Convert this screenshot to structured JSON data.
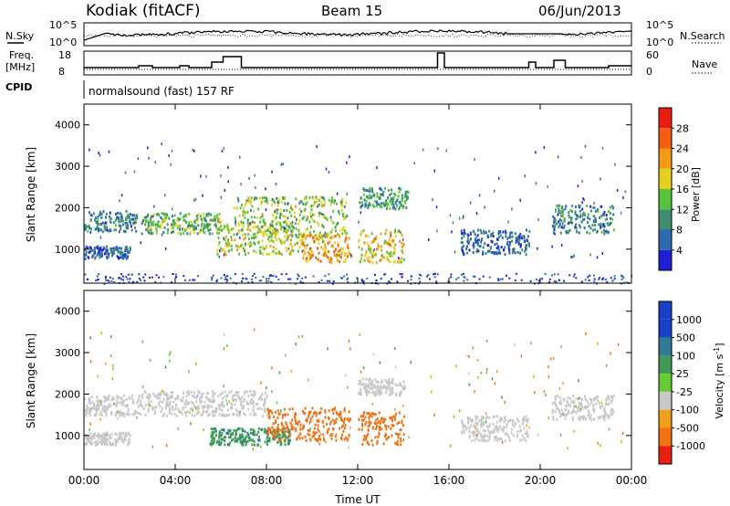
{
  "header": {
    "station": "Kodiak (fitACF)",
    "beam": "Beam 15",
    "date": "06/Jun/2013"
  },
  "top_panels": {
    "nsky_label": "N.Sky",
    "nsky_ticks": [
      "10^5",
      "10^0"
    ],
    "nsearch_label": "N.Search",
    "nsearch_ticks": [
      "10^5",
      "10^0"
    ],
    "freq_label_1": "Freq.",
    "freq_label_2": "[MHz]",
    "freq_ticks": [
      "18",
      "8"
    ],
    "nave_label": "Nave",
    "nave_ticks": [
      "60",
      "0"
    ],
    "cpid_label": "CPID",
    "cpid_text": "normalsound (fast) 157 RF"
  },
  "power_panel": {
    "ylabel": "Slant Range [km]",
    "yticks": [
      "1000",
      "2000",
      "3000",
      "4000"
    ],
    "colorbar_label": "Power [dB]",
    "colorbar_ticks": [
      "4",
      "8",
      "12",
      "16",
      "20",
      "24",
      "28"
    ],
    "colors": [
      "#1f1fd6",
      "#2d68b4",
      "#3d8c6e",
      "#55c43c",
      "#e6d01e",
      "#f29a16",
      "#f06010",
      "#e81e12"
    ]
  },
  "velocity_panel": {
    "ylabel": "Slant Range [km]",
    "yticks": [
      "1000",
      "2000",
      "3000",
      "4000"
    ],
    "colorbar_label": "Velocity [m s",
    "colorbar_label_sup": "-1",
    "colorbar_label_end": "]",
    "colorbar_ticks": [
      "1000",
      "500",
      "100",
      "25",
      "-25",
      "-100",
      "-500",
      "-1000"
    ],
    "colors": [
      "#1a40c8",
      "#2f7a96",
      "#3f9a55",
      "#66cc33",
      "#c8c8c8",
      "#f0a018",
      "#f07014",
      "#e82010"
    ]
  },
  "xaxis": {
    "ticks": [
      "00:00",
      "04:00",
      "08:00",
      "12:00",
      "16:00",
      "20:00",
      "00:00"
    ],
    "label": "Time UT"
  },
  "chart_data": [
    {
      "type": "heatmap",
      "title": "",
      "xlabel": "Time UT",
      "ylabel": "Slant Range [km]",
      "xlim_hours": [
        0,
        24
      ],
      "ylim": [
        180,
        4500
      ],
      "colorbar": "Power [dB]",
      "clim": [
        0,
        30
      ],
      "regions": [
        {
          "t0": 0.0,
          "t1": 2.3,
          "r0": 1450,
          "r1": 1950,
          "value": 8
        },
        {
          "t0": 0.0,
          "t1": 2.0,
          "r0": 800,
          "r1": 1100,
          "value": 6
        },
        {
          "t0": 2.5,
          "t1": 6.0,
          "r0": 1400,
          "r1": 1900,
          "value": 12
        },
        {
          "t0": 5.8,
          "t1": 9.5,
          "r0": 900,
          "r1": 1700,
          "value": 16
        },
        {
          "t0": 6.5,
          "t1": 11.5,
          "r0": 1300,
          "r1": 2300,
          "value": 14
        },
        {
          "t0": 9.5,
          "t1": 11.7,
          "r0": 700,
          "r1": 1400,
          "value": 20
        },
        {
          "t0": 12.0,
          "t1": 14.2,
          "r0": 2000,
          "r1": 2500,
          "value": 10
        },
        {
          "t0": 12.0,
          "t1": 14.0,
          "r0": 700,
          "r1": 1500,
          "value": 18
        },
        {
          "t0": 16.5,
          "t1": 19.5,
          "r0": 900,
          "r1": 1500,
          "value": 6
        },
        {
          "t0": 20.5,
          "t1": 23.2,
          "r0": 1400,
          "r1": 2100,
          "value": 8
        }
      ]
    },
    {
      "type": "heatmap",
      "title": "",
      "xlabel": "Time UT",
      "ylabel": "Slant Range [km]",
      "xlim_hours": [
        0,
        24
      ],
      "ylim": [
        180,
        4500
      ],
      "colorbar": "Velocity [m s-1]",
      "clim": [
        -1000,
        1000
      ],
      "regions": [
        {
          "t0": 0.0,
          "t1": 2.5,
          "r0": 1500,
          "r1": 2000,
          "value": 0
        },
        {
          "t0": 0.0,
          "t1": 2.0,
          "r0": 800,
          "r1": 1100,
          "value": 0
        },
        {
          "t0": 2.5,
          "t1": 8.0,
          "r0": 1500,
          "r1": 2100,
          "value": 0
        },
        {
          "t0": 5.5,
          "t1": 9.0,
          "r0": 800,
          "r1": 1200,
          "value": 400
        },
        {
          "t0": 8.0,
          "t1": 11.7,
          "r0": 900,
          "r1": 1700,
          "value": -300
        },
        {
          "t0": 12.0,
          "t1": 14.0,
          "r0": 800,
          "r1": 1600,
          "value": -300
        },
        {
          "t0": 12.0,
          "t1": 14.0,
          "r0": 2000,
          "r1": 2400,
          "value": 0
        },
        {
          "t0": 16.5,
          "t1": 19.5,
          "r0": 900,
          "r1": 1500,
          "value": 0
        },
        {
          "t0": 20.5,
          "t1": 23.2,
          "r0": 1400,
          "r1": 2000,
          "value": 0
        }
      ]
    }
  ]
}
